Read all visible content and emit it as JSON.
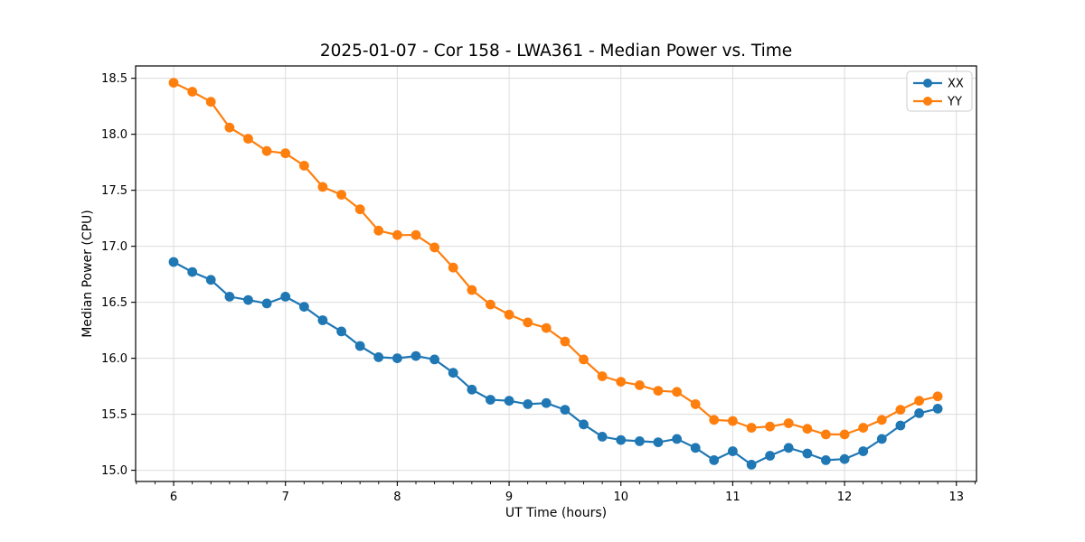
{
  "chart_data": {
    "type": "line",
    "title": "2025-01-07 - Cor 158 - LWA361 - Median Power vs. Time",
    "xlabel": "UT Time (hours)",
    "ylabel": "Median Power (CPU)",
    "xlim": [
      5.66,
      13.18
    ],
    "ylim": [
      14.9,
      18.61
    ],
    "xticks": [
      6,
      7,
      8,
      9,
      10,
      11,
      12,
      13
    ],
    "yticks": [
      15.0,
      15.5,
      16.0,
      16.5,
      17.0,
      17.5,
      18.0,
      18.5
    ],
    "grid": true,
    "grid_color": "#dcdcdc",
    "minor_x_tick_step_hours": 0.1667,
    "legend_position": "upper right",
    "x": [
      6.0,
      6.167,
      6.333,
      6.5,
      6.667,
      6.833,
      7.0,
      7.167,
      7.333,
      7.5,
      7.667,
      7.833,
      8.0,
      8.167,
      8.333,
      8.5,
      8.667,
      8.833,
      9.0,
      9.167,
      9.333,
      9.5,
      9.667,
      9.833,
      10.0,
      10.167,
      10.333,
      10.5,
      10.667,
      10.833,
      11.0,
      11.167,
      11.333,
      11.5,
      11.667,
      11.833,
      12.0,
      12.167,
      12.333,
      12.5,
      12.667,
      12.833
    ],
    "series": [
      {
        "name": "XX",
        "color": "#1f77b4",
        "values": [
          16.86,
          16.77,
          16.7,
          16.55,
          16.52,
          16.49,
          16.55,
          16.46,
          16.34,
          16.24,
          16.11,
          16.01,
          16.0,
          16.02,
          15.99,
          15.87,
          15.72,
          15.63,
          15.62,
          15.59,
          15.6,
          15.54,
          15.41,
          15.3,
          15.27,
          15.26,
          15.25,
          15.28,
          15.2,
          15.09,
          15.17,
          15.05,
          15.13,
          15.2,
          15.15,
          15.09,
          15.1,
          15.17,
          15.28,
          15.4,
          15.51,
          15.55
        ]
      },
      {
        "name": "YY",
        "color": "#ff7f0e",
        "values": [
          18.46,
          18.38,
          18.29,
          18.06,
          17.96,
          17.85,
          17.83,
          17.72,
          17.53,
          17.46,
          17.33,
          17.14,
          17.1,
          17.1,
          16.99,
          16.81,
          16.61,
          16.48,
          16.39,
          16.32,
          16.27,
          16.15,
          15.99,
          15.84,
          15.79,
          15.76,
          15.71,
          15.7,
          15.59,
          15.45,
          15.44,
          15.38,
          15.39,
          15.42,
          15.37,
          15.32,
          15.32,
          15.38,
          15.45,
          15.54,
          15.62,
          15.66
        ]
      }
    ]
  }
}
